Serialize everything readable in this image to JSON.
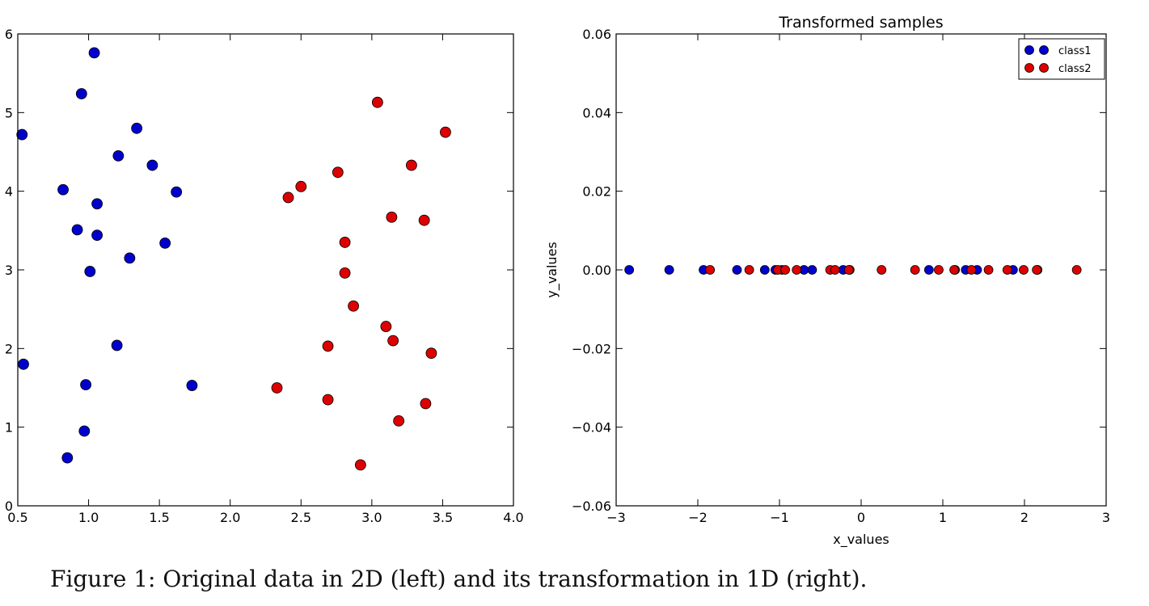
{
  "caption": "Figure 1: Original data in 2D (left) and its transformation in 1D (right).",
  "colors": {
    "class1": "#0000cc",
    "class2": "#dd0000",
    "axes": "#000000",
    "background": "#ffffff"
  },
  "chart_data": [
    {
      "type": "scatter",
      "title": "",
      "xlabel": "",
      "ylabel": "",
      "xlim": [
        0.5,
        4.0
      ],
      "ylim": [
        0,
        6
      ],
      "xticks": [
        "0.5",
        "1.0",
        "1.5",
        "2.0",
        "2.5",
        "3.0",
        "3.5",
        "4.0"
      ],
      "yticks": [
        "0",
        "1",
        "2",
        "3",
        "4",
        "5",
        "6"
      ],
      "grid": false,
      "series": [
        {
          "color": "#0000cc",
          "points": [
            [
              0.53,
              4.72
            ],
            [
              0.95,
              5.24
            ],
            [
              1.04,
              5.76
            ],
            [
              1.34,
              4.8
            ],
            [
              1.21,
              4.45
            ],
            [
              1.45,
              4.33
            ],
            [
              0.82,
              4.02
            ],
            [
              1.62,
              3.99
            ],
            [
              1.06,
              3.84
            ],
            [
              0.92,
              3.51
            ],
            [
              1.06,
              3.44
            ],
            [
              1.54,
              3.34
            ],
            [
              1.29,
              3.15
            ],
            [
              1.01,
              2.98
            ],
            [
              1.2,
              2.04
            ],
            [
              0.54,
              1.8
            ],
            [
              0.98,
              1.54
            ],
            [
              1.73,
              1.53
            ],
            [
              0.97,
              0.95
            ],
            [
              0.85,
              0.61
            ]
          ]
        },
        {
          "color": "#dd0000",
          "points": [
            [
              3.04,
              5.13
            ],
            [
              3.52,
              4.75
            ],
            [
              3.28,
              4.33
            ],
            [
              2.76,
              4.24
            ],
            [
              2.5,
              4.06
            ],
            [
              2.41,
              3.92
            ],
            [
              3.14,
              3.67
            ],
            [
              3.37,
              3.63
            ],
            [
              2.81,
              3.35
            ],
            [
              2.81,
              2.96
            ],
            [
              2.87,
              2.54
            ],
            [
              3.1,
              2.28
            ],
            [
              3.15,
              2.1
            ],
            [
              3.42,
              1.94
            ],
            [
              2.69,
              2.03
            ],
            [
              2.33,
              1.5
            ],
            [
              2.69,
              1.35
            ],
            [
              3.38,
              1.3
            ],
            [
              3.19,
              1.08
            ],
            [
              2.92,
              0.52
            ]
          ]
        }
      ]
    },
    {
      "type": "scatter",
      "title": "Transformed samples",
      "xlabel": "x_values",
      "ylabel": "y_values",
      "xlim": [
        -3,
        3
      ],
      "ylim": [
        -0.06,
        0.06
      ],
      "xticks": [
        "−3",
        "−2",
        "−1",
        "0",
        "1",
        "2",
        "3"
      ],
      "yticks": [
        "0.06",
        "0.04",
        "0.02",
        "0.00",
        "−0.02",
        "−0.04",
        "−0.06"
      ],
      "grid": false,
      "legend": {
        "position": "top-right",
        "entries": [
          "class1",
          "class2"
        ]
      },
      "series": [
        {
          "name": "class1",
          "color": "#0000cc",
          "x": [
            -2.84,
            -2.35,
            -1.93,
            -1.52,
            -1.18,
            -1.05,
            -0.97,
            -0.7,
            -0.6,
            -0.22,
            -0.14,
            0.83,
            1.15,
            1.28,
            1.42,
            1.86,
            2.16
          ],
          "y": [
            0,
            0,
            0,
            0,
            0,
            0,
            0,
            0,
            0,
            0,
            0,
            0,
            0,
            0,
            0,
            0,
            0
          ]
        },
        {
          "name": "class2",
          "color": "#dd0000",
          "x": [
            -1.85,
            -1.37,
            -1.02,
            -0.93,
            -0.79,
            -0.38,
            -0.32,
            -0.15,
            0.25,
            0.66,
            0.95,
            1.14,
            1.35,
            1.56,
            1.79,
            1.99,
            2.15,
            2.64
          ],
          "y": [
            0,
            0,
            0,
            0,
            0,
            0,
            0,
            0,
            0,
            0,
            0,
            0,
            0,
            0,
            0,
            0,
            0,
            0
          ]
        }
      ]
    }
  ]
}
